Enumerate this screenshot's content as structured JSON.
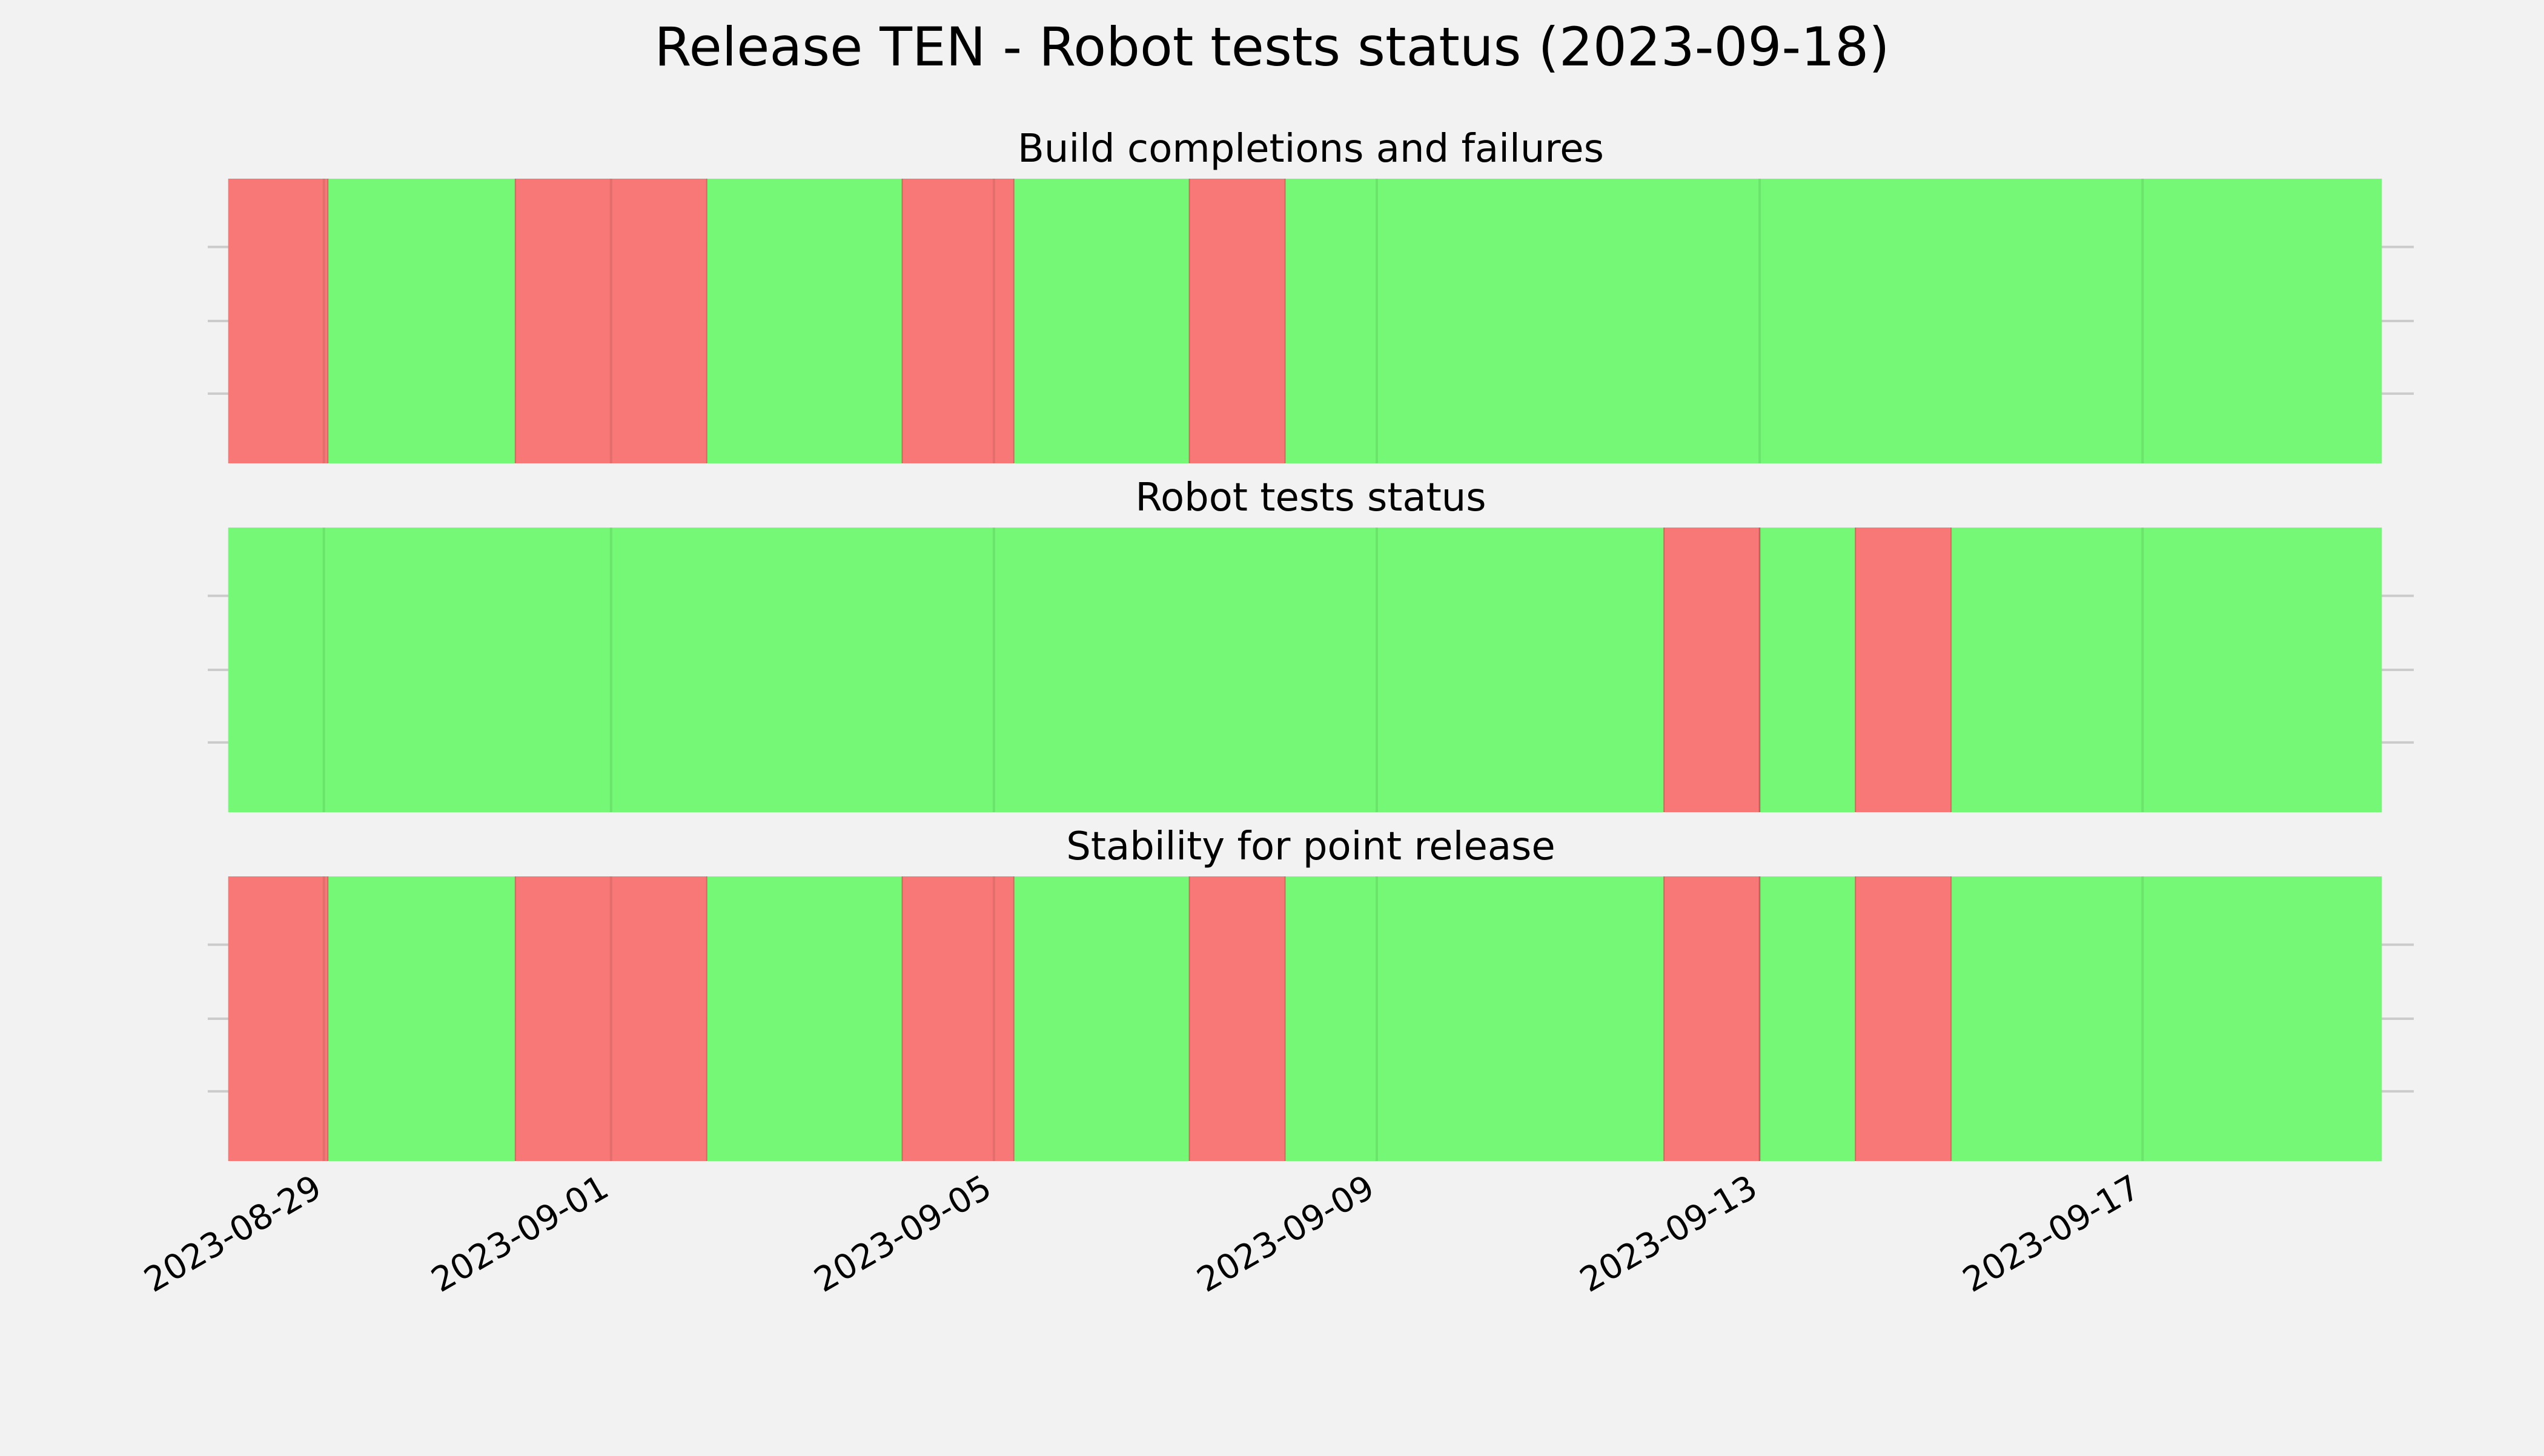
{
  "chart_data": {
    "type": "timeline",
    "title": "Release TEN - Robot tests status (2023-09-18)",
    "x_start": "2023-08-28",
    "x_end": "2023-09-19",
    "xlim": [
      "2023-08-27T18:53",
      "2023-09-19T20:00"
    ],
    "tick_labels": [
      "2023-08-29",
      "2023-09-01",
      "2023-09-05",
      "2023-09-09",
      "2023-09-13",
      "2023-09-17"
    ],
    "grid": true,
    "legend": "none",
    "colors": {
      "pass": "#75f876",
      "fail": "#f77876",
      "grid": "#cbcbcb",
      "background": "#f2f2f2"
    },
    "panels": [
      {
        "name": "build-completions",
        "title": "Build completions and failures",
        "segments": [
          {
            "start": "2023-08-28",
            "end": "2023-08-29T01:00",
            "status": "fail"
          },
          {
            "start": "2023-08-29T01:00",
            "end": "2023-08-31",
            "status": "pass"
          },
          {
            "start": "2023-08-31",
            "end": "2023-09-02",
            "status": "fail"
          },
          {
            "start": "2023-09-02",
            "end": "2023-09-04T01:00",
            "status": "pass"
          },
          {
            "start": "2023-09-04T01:00",
            "end": "2023-09-05T05:00",
            "status": "fail"
          },
          {
            "start": "2023-09-05T05:00",
            "end": "2023-09-07T01:00",
            "status": "pass"
          },
          {
            "start": "2023-09-07T01:00",
            "end": "2023-09-08T01:00",
            "status": "fail"
          },
          {
            "start": "2023-09-08T01:00",
            "end": "2023-09-19T12:00",
            "status": "pass"
          }
        ]
      },
      {
        "name": "robot-tests-status",
        "title": "Robot tests status",
        "segments": [
          {
            "start": "2023-08-28",
            "end": "2023-09-12",
            "status": "pass"
          },
          {
            "start": "2023-09-12",
            "end": "2023-09-13",
            "status": "fail"
          },
          {
            "start": "2023-09-13",
            "end": "2023-09-14",
            "status": "pass"
          },
          {
            "start": "2023-09-14",
            "end": "2023-09-15",
            "status": "fail"
          },
          {
            "start": "2023-09-15",
            "end": "2023-09-19T12:00",
            "status": "pass"
          }
        ]
      },
      {
        "name": "stability-point-release",
        "title": "Stability for point release",
        "segments": [
          {
            "start": "2023-08-28",
            "end": "2023-08-29T01:00",
            "status": "fail"
          },
          {
            "start": "2023-08-29T01:00",
            "end": "2023-08-31",
            "status": "pass"
          },
          {
            "start": "2023-08-31",
            "end": "2023-09-02",
            "status": "fail"
          },
          {
            "start": "2023-09-02",
            "end": "2023-09-04T01:00",
            "status": "pass"
          },
          {
            "start": "2023-09-04T01:00",
            "end": "2023-09-05T05:00",
            "status": "fail"
          },
          {
            "start": "2023-09-05T05:00",
            "end": "2023-09-07T01:00",
            "status": "pass"
          },
          {
            "start": "2023-09-07T01:00",
            "end": "2023-09-08T01:00",
            "status": "fail"
          },
          {
            "start": "2023-09-08T01:00",
            "end": "2023-09-12",
            "status": "pass"
          },
          {
            "start": "2023-09-12",
            "end": "2023-09-13",
            "status": "fail"
          },
          {
            "start": "2023-09-13",
            "end": "2023-09-14",
            "status": "pass"
          },
          {
            "start": "2023-09-14",
            "end": "2023-09-15",
            "status": "fail"
          },
          {
            "start": "2023-09-15",
            "end": "2023-09-19T12:00",
            "status": "pass"
          }
        ]
      }
    ]
  }
}
